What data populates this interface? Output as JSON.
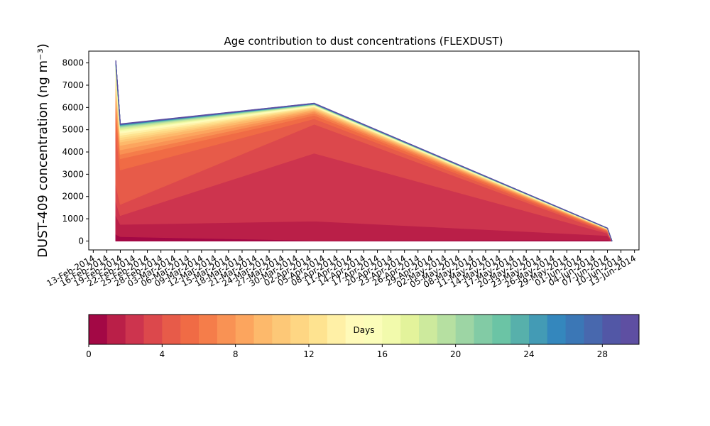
{
  "chart_data": {
    "type": "stackedarea",
    "title": "Age contribution to dust concentrations (FLEXDUST)",
    "ylabel": "DUST-409 concentration (ng m⁻³)",
    "x": [
      "2014-02-18",
      "2014-02-19",
      "2014-04-03",
      "2014-06-07",
      "2014-06-08"
    ],
    "series": [
      {
        "values": [
          308,
          200,
          30,
          50,
          0
        ]
      },
      {
        "values": [
          847,
          550,
          870,
          200,
          0
        ]
      },
      {
        "values": [
          616,
          400,
          3050,
          100,
          0
        ]
      },
      {
        "values": [
          770,
          500,
          1300,
          50,
          0
        ]
      },
      {
        "values": [
          2387,
          1550,
          250,
          40,
          0
        ]
      },
      {
        "values": [
          770,
          500,
          150,
          30,
          0
        ]
      },
      {
        "values": [
          308,
          200,
          100,
          20,
          0
        ]
      },
      {
        "values": [
          308,
          200,
          70,
          15,
          0
        ]
      },
      {
        "values": [
          308,
          200,
          60,
          10,
          0
        ]
      },
      {
        "values": [
          231,
          150,
          50,
          10,
          0
        ]
      },
      {
        "values": [
          154,
          100,
          40,
          8,
          0
        ]
      },
      {
        "values": [
          154,
          100,
          30,
          7,
          0
        ]
      },
      {
        "values": [
          154,
          100,
          30,
          6,
          0
        ]
      },
      {
        "values": [
          154,
          100,
          20,
          5,
          0
        ]
      },
      {
        "values": [
          77,
          50,
          20,
          4,
          0
        ]
      },
      {
        "values": [
          77,
          50,
          20,
          4,
          0
        ]
      },
      {
        "values": [
          77,
          50,
          10,
          3,
          0
        ]
      },
      {
        "values": [
          77,
          50,
          10,
          3,
          0
        ]
      },
      {
        "values": [
          77,
          50,
          10,
          3,
          0
        ]
      },
      {
        "values": [
          46,
          30,
          10,
          2,
          0
        ]
      },
      {
        "values": [
          46,
          30,
          10,
          2,
          0
        ]
      },
      {
        "values": [
          31,
          20,
          10,
          2,
          0
        ]
      },
      {
        "values": [
          31,
          20,
          5,
          1,
          0
        ]
      },
      {
        "values": [
          15,
          10,
          5,
          1,
          0
        ]
      },
      {
        "values": [
          15,
          10,
          5,
          1,
          0
        ]
      },
      {
        "values": [
          15,
          10,
          5,
          1,
          0
        ]
      },
      {
        "values": [
          15,
          10,
          5,
          1,
          0
        ]
      },
      {
        "values": [
          8,
          5,
          5,
          1,
          0
        ]
      },
      {
        "values": [
          8,
          5,
          5,
          0,
          0
        ]
      },
      {
        "values": [
          15,
          10,
          5,
          0,
          0
        ]
      }
    ],
    "xlim": [
      "2014-02-12",
      "2014-06-14"
    ],
    "xticks": [
      {
        "value": "2014-02-13",
        "label": "13-Feb-2014"
      },
      {
        "value": "2014-02-16",
        "label": "16-Feb-2014"
      },
      {
        "value": "2014-02-19",
        "label": "19-Feb-2014"
      },
      {
        "value": "2014-02-22",
        "label": "22-Feb-2014"
      },
      {
        "value": "2014-02-25",
        "label": "25-Feb-2014"
      },
      {
        "value": "2014-02-28",
        "label": "28-Feb-2014"
      },
      {
        "value": "2014-03-03",
        "label": "03-Mar-2014"
      },
      {
        "value": "2014-03-06",
        "label": "06-Mar-2014"
      },
      {
        "value": "2014-03-09",
        "label": "09-Mar-2014"
      },
      {
        "value": "2014-03-12",
        "label": "12-Mar-2014"
      },
      {
        "value": "2014-03-15",
        "label": "15-Mar-2014"
      },
      {
        "value": "2014-03-18",
        "label": "18-Mar-2014"
      },
      {
        "value": "2014-03-21",
        "label": "21-Mar-2014"
      },
      {
        "value": "2014-03-24",
        "label": "24-Mar-2014"
      },
      {
        "value": "2014-03-27",
        "label": "27-Mar-2014"
      },
      {
        "value": "2014-03-30",
        "label": "30-Mar-2014"
      },
      {
        "value": "2014-04-02",
        "label": "02-Apr-2014"
      },
      {
        "value": "2014-04-05",
        "label": "05-Apr-2014"
      },
      {
        "value": "2014-04-08",
        "label": "08-Apr-2014"
      },
      {
        "value": "2014-04-11",
        "label": "11-Apr-2014"
      },
      {
        "value": "2014-04-14",
        "label": "14-Apr-2014"
      },
      {
        "value": "2014-04-17",
        "label": "17-Apr-2014"
      },
      {
        "value": "2014-04-20",
        "label": "20-Apr-2014"
      },
      {
        "value": "2014-04-23",
        "label": "23-Apr-2014"
      },
      {
        "value": "2014-04-26",
        "label": "26-Apr-2014"
      },
      {
        "value": "2014-04-29",
        "label": "29-Apr-2014"
      },
      {
        "value": "2014-05-02",
        "label": "02-May-2014"
      },
      {
        "value": "2014-05-05",
        "label": "05-May-2014"
      },
      {
        "value": "2014-05-08",
        "label": "08-May-2014"
      },
      {
        "value": "2014-05-11",
        "label": "11-May-2014"
      },
      {
        "value": "2014-05-14",
        "label": "14-May-2014"
      },
      {
        "value": "2014-05-17",
        "label": "17-May-2014"
      },
      {
        "value": "2014-05-20",
        "label": "20-May-2014"
      },
      {
        "value": "2014-05-23",
        "label": "23-May-2014"
      },
      {
        "value": "2014-05-26",
        "label": "26-May-2014"
      },
      {
        "value": "2014-05-29",
        "label": "29-May-2014"
      },
      {
        "value": "2014-06-01",
        "label": "01-Jun-2014"
      },
      {
        "value": "2014-06-04",
        "label": "04-Jun-2014"
      },
      {
        "value": "2014-06-07",
        "label": "07-Jun-2014"
      },
      {
        "value": "2014-06-10",
        "label": "10-Jun-2014"
      },
      {
        "value": "2014-06-13",
        "label": "13-Jun-2014"
      }
    ],
    "ylim": [
      -400,
      8530
    ],
    "yticks": [
      0,
      1000,
      2000,
      3000,
      4000,
      5000,
      6000,
      7000,
      8000
    ],
    "colorbar": {
      "label": "Days",
      "lim": [
        0,
        30
      ],
      "ticks": [
        0,
        4,
        8,
        12,
        16,
        20,
        24,
        28
      ],
      "colors": [
        "#a30845",
        "#ba1f48",
        "#cd344e",
        "#dc484c",
        "#e75b49",
        "#f06b45",
        "#f57d4a",
        "#f99254",
        "#fca55e",
        "#fdb96b",
        "#fdc877",
        "#fed683",
        "#fee390",
        "#fff0a6",
        "#fffab9",
        "#fbfdb9",
        "#f2faac",
        "#e3f39b",
        "#cdea9d",
        "#b6e0a1",
        "#9dd5a4",
        "#82cba5",
        "#6bc4a5",
        "#57b0ab",
        "#439bb5",
        "#3487bd",
        "#3b77b6",
        "#4868ae",
        "#5257a6",
        "#5e4fa2"
      ]
    }
  }
}
